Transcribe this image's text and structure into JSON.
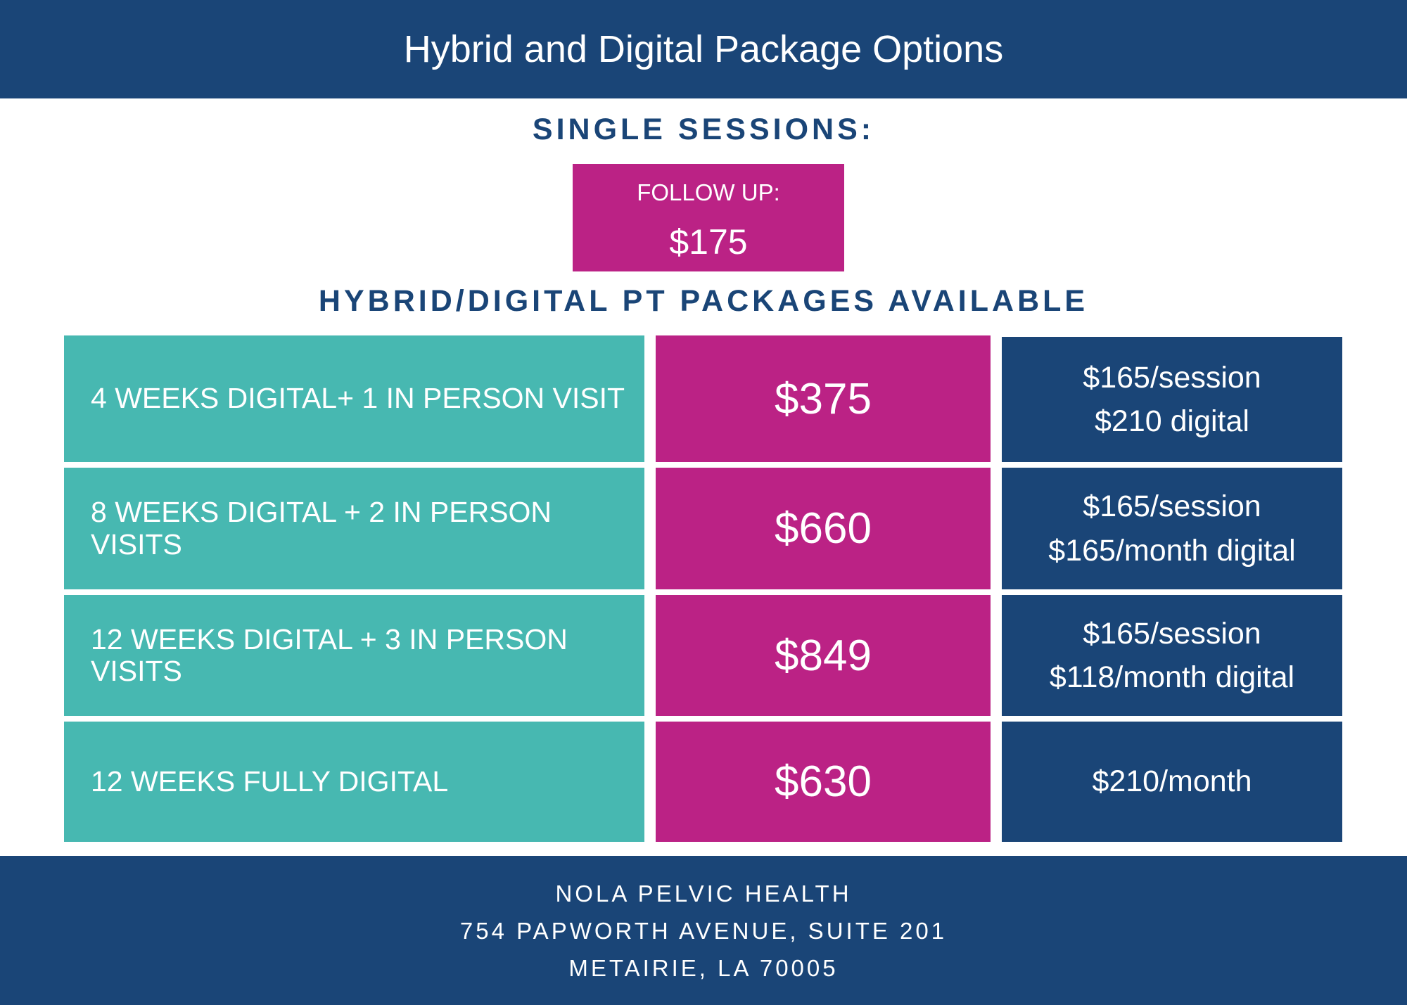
{
  "header": {
    "title": "Hybrid and Digital Package Options"
  },
  "single_sessions": {
    "heading": "SINGLE SESSIONS:",
    "follow_up_label": "FOLLOW UP:",
    "follow_up_price": "$175"
  },
  "packages": {
    "heading": "HYBRID/DIGITAL PT PACKAGES AVAILABLE",
    "rows": [
      {
        "description": "4 WEEKS DIGITAL+ 1 IN PERSON VISIT",
        "price": "$375",
        "rate_line1": "$165/session",
        "rate_line2": "$210 digital"
      },
      {
        "description": "8 WEEKS DIGITAL + 2 IN PERSON VISITS",
        "price": "$660",
        "rate_line1": "$165/session",
        "rate_line2": "$165/month digital"
      },
      {
        "description": "12 WEEKS DIGITAL + 3 IN PERSON VISITS",
        "price": "$849",
        "rate_line1": "$165/session",
        "rate_line2": "$118/month digital"
      },
      {
        "description": "12 WEEKS FULLY DIGITAL",
        "price": "$630",
        "rate_line1": "$210/month"
      }
    ]
  },
  "footer": {
    "name": "NOLA PELVIC HEALTH",
    "address_line1": "754 PAPWORTH AVENUE, SUITE 201",
    "address_line2": "METAIRIE, LA 70005"
  },
  "colors": {
    "navy": "#1a4577",
    "magenta": "#bb2285",
    "teal": "#47b8b1"
  }
}
